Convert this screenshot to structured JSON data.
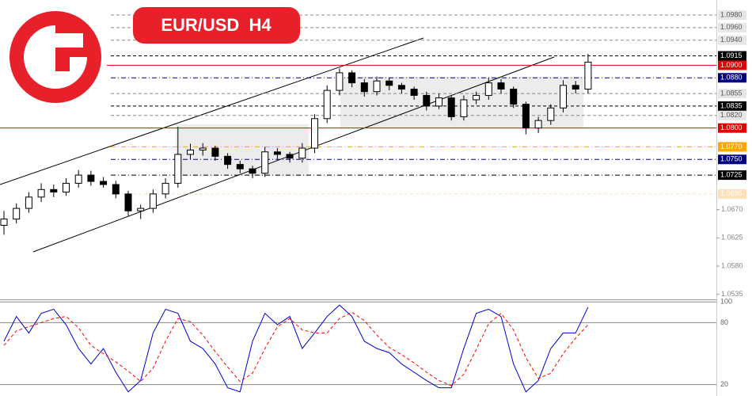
{
  "chart_data": [
    {
      "type": "candlestick",
      "title": "EUR/USD  H4",
      "open": [
        1.0645,
        1.0655,
        1.0672,
        1.069,
        1.0702,
        1.0698,
        1.0712,
        1.0725,
        1.0715,
        1.071,
        1.0695,
        1.0668,
        1.0672,
        1.0695,
        1.0712,
        1.0758,
        1.0765,
        1.0768,
        1.0755,
        1.0742,
        1.0735,
        1.0728,
        1.0762,
        1.0758,
        1.0752,
        1.0768,
        1.0815,
        1.086,
        1.0888,
        1.0872,
        1.0858,
        1.0875,
        1.0868,
        1.0862,
        1.0852,
        1.0835,
        1.0848,
        1.0818,
        1.0845,
        1.0852,
        1.0872,
        1.0862,
        1.0838,
        1.08,
        1.0812,
        1.0832,
        1.0868,
        1.0862
      ],
      "high": [
        1.0668,
        1.068,
        1.0698,
        1.0712,
        1.071,
        1.072,
        1.0733,
        1.0732,
        1.0722,
        1.0716,
        1.07,
        1.0678,
        1.0702,
        1.072,
        1.0802,
        1.0775,
        1.0776,
        1.0772,
        1.076,
        1.0748,
        1.074,
        1.077,
        1.0768,
        1.0762,
        1.0776,
        1.0822,
        1.0868,
        1.0895,
        1.0892,
        1.0878,
        1.0882,
        1.088,
        1.0872,
        1.0866,
        1.0858,
        1.0855,
        1.0852,
        1.0852,
        1.0858,
        1.088,
        1.0878,
        1.0866,
        1.0842,
        1.0818,
        1.0838,
        1.0876,
        1.0875,
        1.0918
      ],
      "low": [
        1.063,
        1.0648,
        1.0665,
        1.0682,
        1.069,
        1.0692,
        1.0705,
        1.0708,
        1.0705,
        1.0688,
        1.066,
        1.0655,
        1.0665,
        1.0688,
        1.0705,
        1.075,
        1.0756,
        1.0748,
        1.0735,
        1.0728,
        1.072,
        1.0722,
        1.075,
        1.0745,
        1.0745,
        1.076,
        1.0808,
        1.0852,
        1.0865,
        1.085,
        1.0852,
        1.086,
        1.0855,
        1.0845,
        1.0828,
        1.083,
        1.0812,
        1.0812,
        1.0838,
        1.0845,
        1.0855,
        1.0832,
        1.079,
        1.0792,
        1.0805,
        1.0825,
        1.0855,
        1.0855
      ],
      "close": [
        1.0655,
        1.0672,
        1.069,
        1.0702,
        1.0698,
        1.0712,
        1.0725,
        1.0715,
        1.071,
        1.0695,
        1.0668,
        1.0672,
        1.0695,
        1.0712,
        1.0758,
        1.0765,
        1.0768,
        1.0755,
        1.0742,
        1.0735,
        1.0728,
        1.0762,
        1.0758,
        1.0752,
        1.0768,
        1.0815,
        1.086,
        1.0888,
        1.0872,
        1.0858,
        1.0875,
        1.0868,
        1.0862,
        1.0852,
        1.0835,
        1.0848,
        1.0818,
        1.0845,
        1.0852,
        1.0872,
        1.0862,
        1.0838,
        1.08,
        1.0812,
        1.0832,
        1.0868,
        1.0862,
        1.0905
      ],
      "up_color": "#ffffff",
      "down_color": "#000000",
      "ylim": [
        1.0527,
        1.1004
      ],
      "yticks": [
        {
          "value": 1.067,
          "label": "1.0670"
        },
        {
          "value": 1.0625,
          "label": "1.0625"
        },
        {
          "value": 1.058,
          "label": "1.0580"
        },
        {
          "value": 1.0535,
          "label": "1.0535"
        }
      ],
      "levels": [
        {
          "value": 1.098,
          "label": "1.0980",
          "color": "#888888",
          "style": "dash",
          "label_bg": "#e6e6e6",
          "label_color": "#555555"
        },
        {
          "value": 1.096,
          "label": "1.0960",
          "color": "#888888",
          "style": "dash",
          "label_bg": "#e6e6e6",
          "label_color": "#555555"
        },
        {
          "value": 1.094,
          "label": "1.0940",
          "color": "#888888",
          "style": "dash",
          "label_bg": "#e6e6e6",
          "label_color": "#555555"
        },
        {
          "value": 1.0915,
          "label": "1.0915",
          "color": "#000000",
          "style": "dash",
          "label_bg": "#000000",
          "label_color": "#ffffff"
        },
        {
          "value": 1.09,
          "label": "1.0900",
          "color": "#e00000",
          "style": "solid",
          "label_bg": "#e00000",
          "label_color": "#ffffff"
        },
        {
          "value": 1.088,
          "label": "1.0880",
          "color": "#000080",
          "style": "dashdot",
          "label_bg": "#000080",
          "label_color": "#ffffff"
        },
        {
          "value": 1.0855,
          "label": "1.0855",
          "color": "#888888",
          "style": "dash",
          "label_bg": "#e6e6e6",
          "label_color": "#555555"
        },
        {
          "value": 1.0835,
          "label": "1.0835",
          "color": "#000000",
          "style": "dash",
          "label_bg": "#000000",
          "label_color": "#ffffff"
        },
        {
          "value": 1.082,
          "label": "1.0820",
          "color": "#888888",
          "style": "dash",
          "label_bg": "#e6e6e6",
          "label_color": "#555555"
        },
        {
          "value": 1.08,
          "label": "1.0800",
          "color": "#e00000",
          "style": "solid",
          "label_bg": "#e00000",
          "label_color": "#ffffff"
        },
        {
          "value": 1.077,
          "label": "1.0770",
          "color": "#ffa500",
          "style": "dashdot",
          "label_bg": "#ffa500",
          "label_color": "#ffffff"
        },
        {
          "value": 1.075,
          "label": "1.0750",
          "color": "#000080",
          "style": "dashdot",
          "label_bg": "#000080",
          "label_color": "#ffffff"
        },
        {
          "value": 1.0725,
          "label": "1.0725",
          "color": "#000000",
          "style": "dashdot",
          "label_bg": "#000000",
          "label_color": "#ffffff"
        },
        {
          "value": 1.0695,
          "label": "1.0695",
          "color": "#ffe0b8",
          "style": "dash",
          "label_bg": "#ffe0b8",
          "label_color": "#ffffff"
        }
      ]
    },
    {
      "type": "line",
      "series": [
        {
          "color": "#0000cd",
          "style": "solid",
          "values": [
            62,
            86,
            70,
            89,
            93,
            78,
            55,
            40,
            55,
            32,
            13,
            24,
            70,
            93,
            89,
            62,
            55,
            40,
            17,
            13,
            62,
            89,
            78,
            86,
            55,
            70,
            86,
            97,
            86,
            62,
            55,
            51,
            40,
            32,
            24,
            17,
            17,
            55,
            89,
            93,
            86,
            40,
            13,
            24,
            55,
            70,
            70,
            95
          ]
        },
        {
          "color": "#ff0000",
          "style": "dash",
          "values": [
            58,
            72,
            76,
            80,
            84,
            86,
            75,
            58,
            50,
            42,
            33,
            23,
            36,
            62,
            84,
            81,
            68,
            52,
            37,
            23,
            31,
            55,
            76,
            84,
            73,
            70,
            70,
            84,
            90,
            82,
            68,
            56,
            49,
            41,
            32,
            24,
            19,
            30,
            54,
            79,
            89,
            73,
            46,
            26,
            31,
            50,
            65,
            78
          ]
        }
      ],
      "ylim": [
        9,
        101
      ],
      "yticks": [
        100,
        80,
        20
      ]
    }
  ]
}
